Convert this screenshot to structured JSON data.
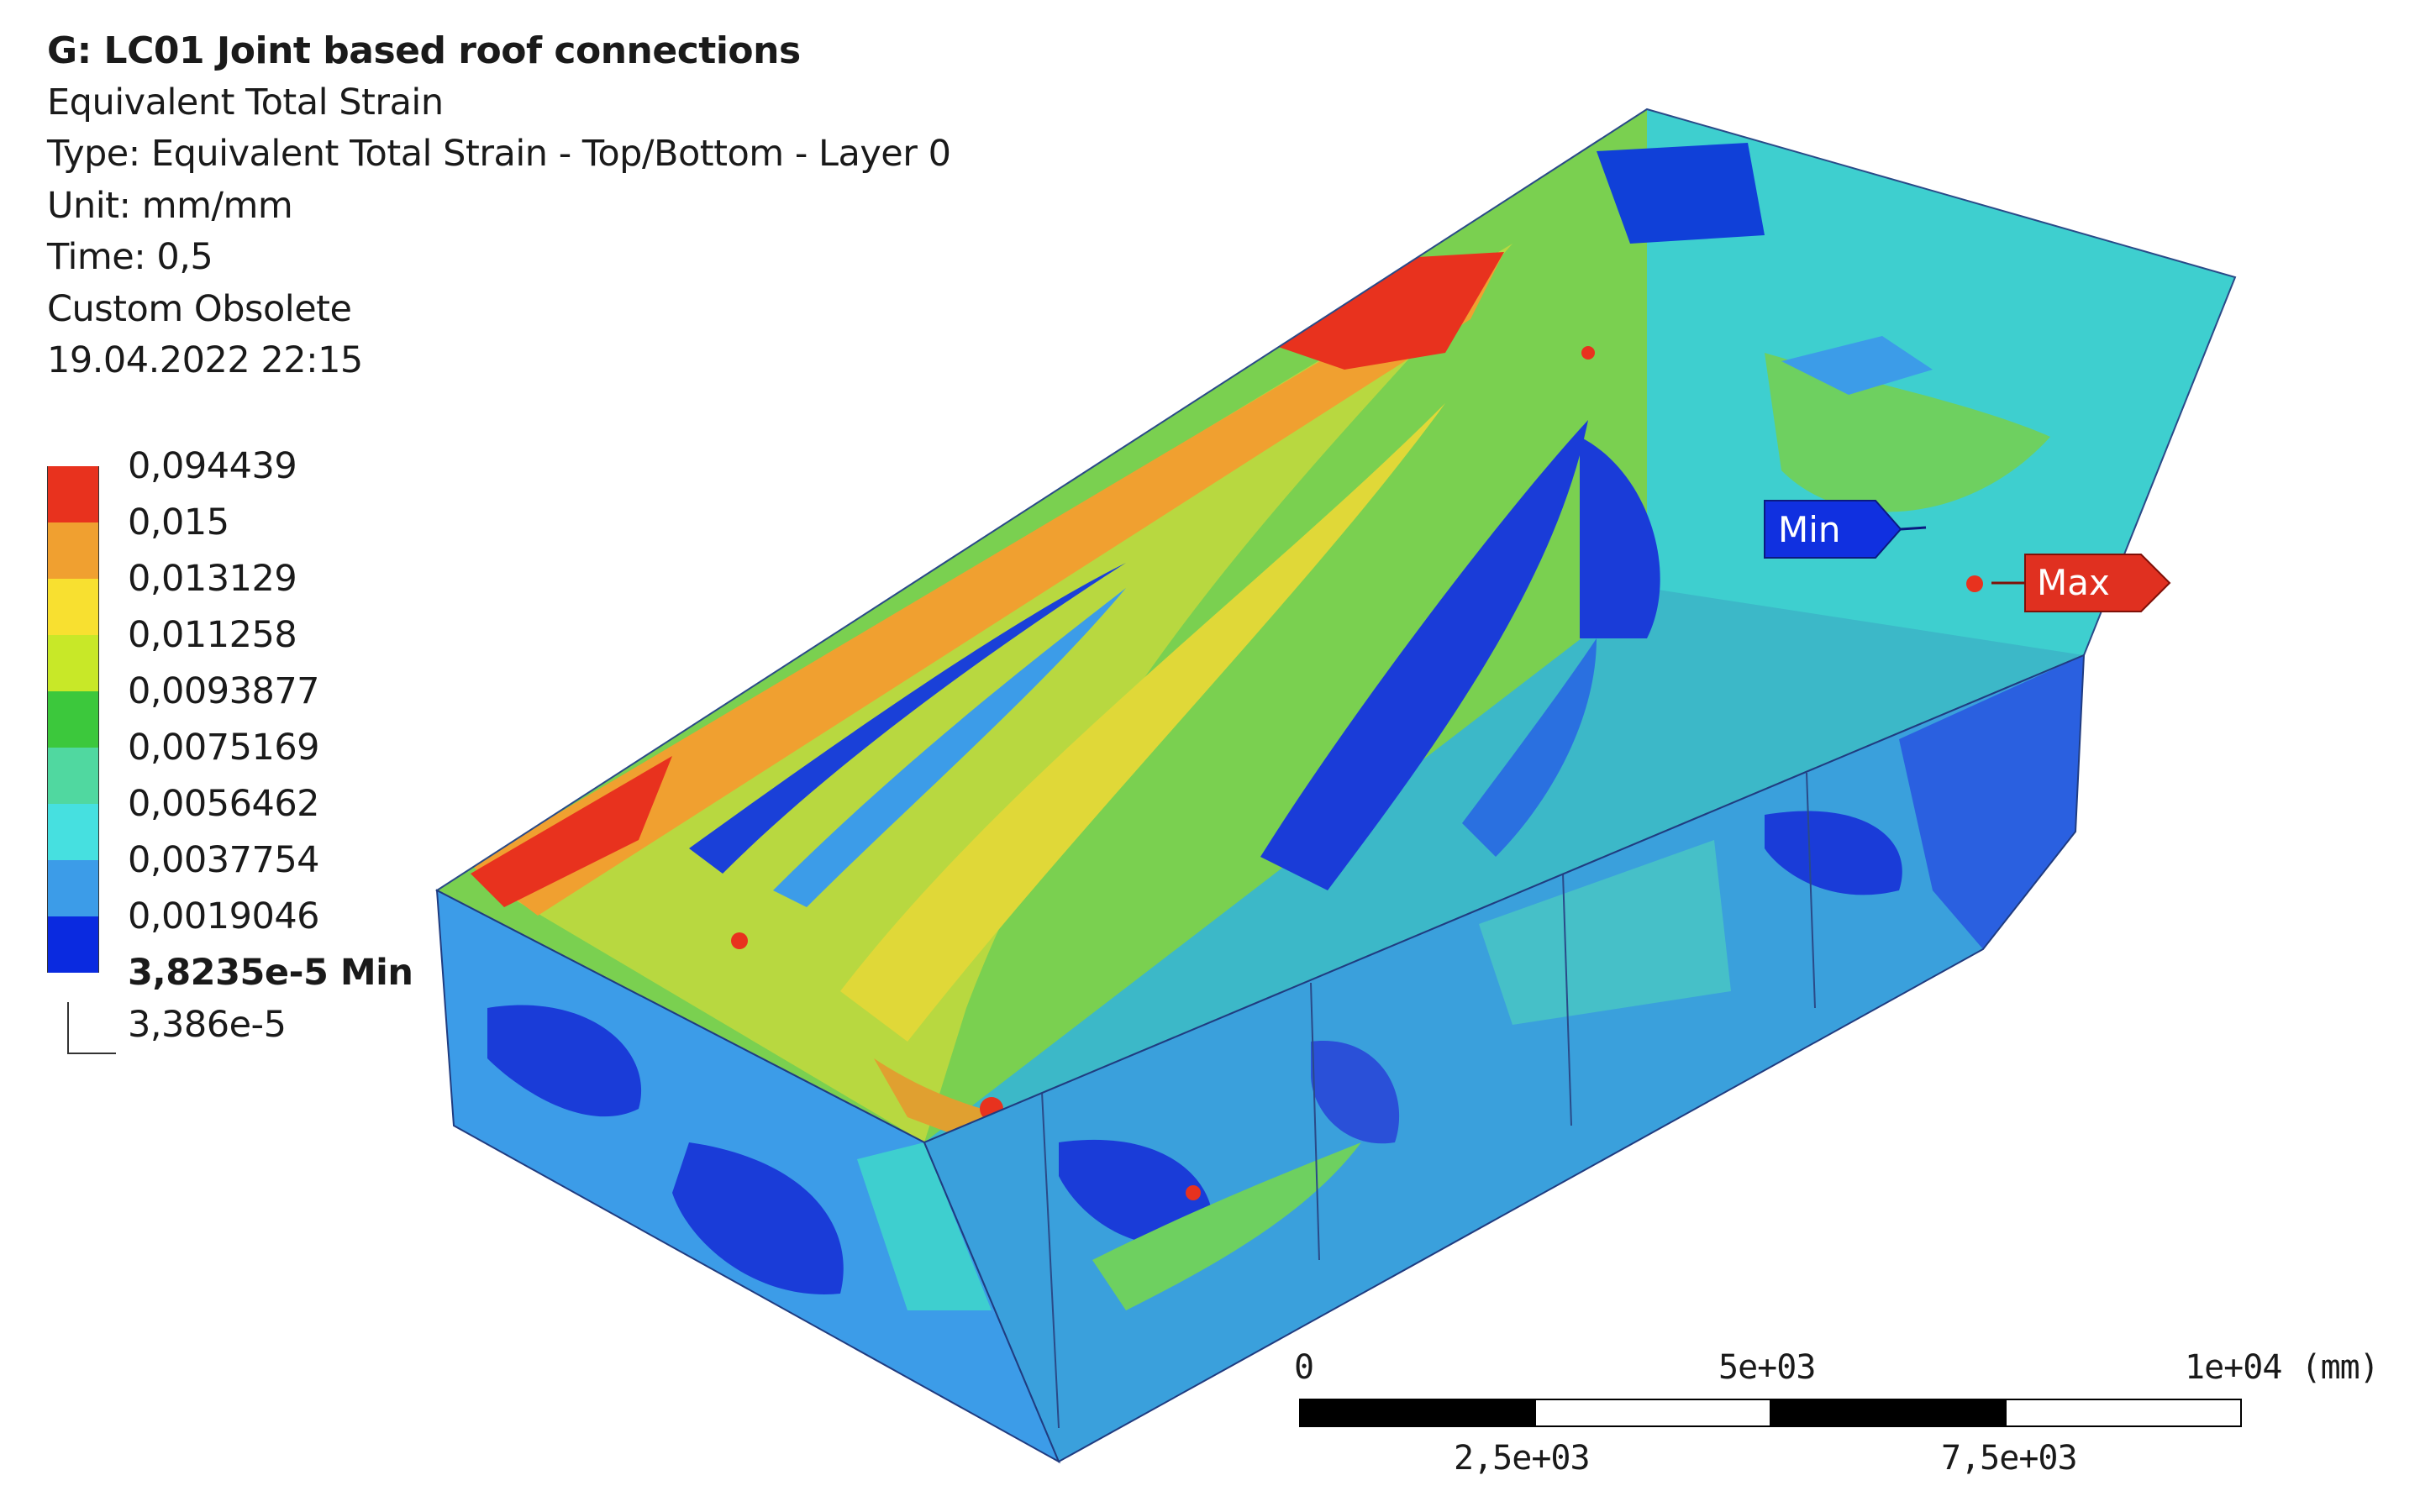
{
  "info": {
    "title": "G: LC01 Joint based roof connections",
    "result": "Equivalent Total Strain",
    "type": "Type: Equivalent Total Strain - Top/Bottom - Layer 0",
    "unit": "Unit: mm/mm",
    "time": "Time: 0,5",
    "custom": "Custom Obsolete",
    "timestamp": "19.04.2022 22:15"
  },
  "legend": {
    "labels": [
      "0,094439",
      "0,015",
      "0,013129",
      "0,011258",
      "0,0093877",
      "0,0075169",
      "0,0056462",
      "0,0037754",
      "0,0019046",
      "3,8235e-5 Min"
    ],
    "below_min": "3,386e-5",
    "colors": [
      "#e8321e",
      "#f0a030",
      "#f8e030",
      "#c8e828",
      "#3cc83c",
      "#50d8a0",
      "#46e0e0",
      "#3c9ce8",
      "#0a2ae0"
    ]
  },
  "markers": {
    "min_label": "Min",
    "max_label": "Max",
    "min_color": "#1030e0",
    "max_color": "#e03020"
  },
  "scale_bar": {
    "top_labels": [
      "0",
      "5e+03",
      "1e+04 (mm)"
    ],
    "bottom_labels": [
      "2,5e+03",
      "7,5e+03"
    ]
  }
}
